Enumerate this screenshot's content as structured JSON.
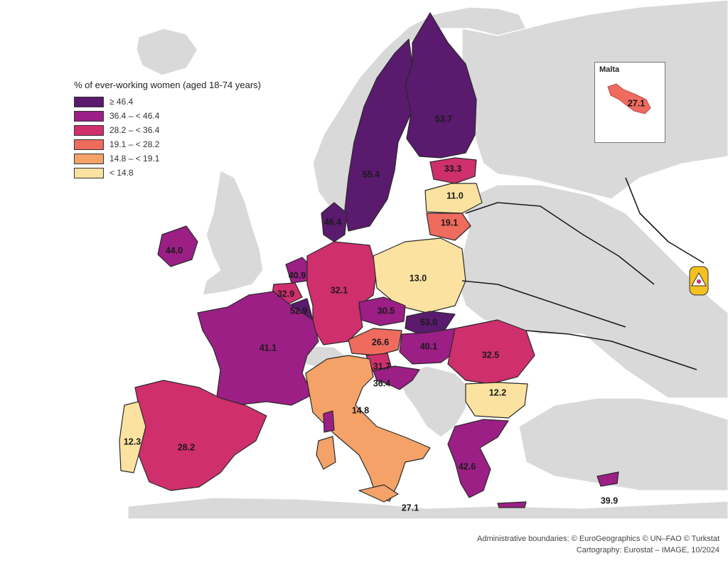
{
  "legend": {
    "title": "% of ever-working women (aged 18-74 years)",
    "classes": [
      {
        "label": "≥ 46.4",
        "color": "#5a1a6e"
      },
      {
        "label": "36.4 – < 46.4",
        "color": "#9b1f85"
      },
      {
        "label": "28.2 – < 36.4",
        "color": "#cf2f6c"
      },
      {
        "label": "19.1 – < 28.2",
        "color": "#ee6b5e"
      },
      {
        "label": "14.8 – < 19.1",
        "color": "#f4a268"
      },
      {
        "label": "< 14.8",
        "color": "#fbe2a0"
      }
    ]
  },
  "countries": [
    {
      "id": "finland",
      "value": "53.7"
    },
    {
      "id": "sweden",
      "value": "55.4"
    },
    {
      "id": "estonia",
      "value": "33.3"
    },
    {
      "id": "latvia",
      "value": "11.0"
    },
    {
      "id": "lithuania",
      "value": "19.1"
    },
    {
      "id": "denmark",
      "value": "46.4"
    },
    {
      "id": "ireland",
      "value": "44.0"
    },
    {
      "id": "netherlands",
      "value": "40.9"
    },
    {
      "id": "belgium",
      "value": "32.9"
    },
    {
      "id": "luxembourg",
      "value": "52.9"
    },
    {
      "id": "germany",
      "value": "32.1"
    },
    {
      "id": "poland",
      "value": "13.0"
    },
    {
      "id": "czechia",
      "value": "30.5"
    },
    {
      "id": "slovakia",
      "value": "53.0"
    },
    {
      "id": "austria",
      "value": "26.6"
    },
    {
      "id": "hungary",
      "value": "40.1"
    },
    {
      "id": "romania",
      "value": "32.5"
    },
    {
      "id": "slovenia",
      "value": "31.7"
    },
    {
      "id": "croatia",
      "value": "36.4"
    },
    {
      "id": "bulgaria",
      "value": "12.2"
    },
    {
      "id": "france",
      "value": "41.1"
    },
    {
      "id": "spain",
      "value": "28.2"
    },
    {
      "id": "portugal",
      "value": "12.3"
    },
    {
      "id": "italy",
      "value": "14.8"
    },
    {
      "id": "malta-main",
      "value": "27.1"
    },
    {
      "id": "greece",
      "value": "42.6"
    },
    {
      "id": "cyprus",
      "value": "39.9"
    },
    {
      "id": "malta",
      "value": "27.1"
    }
  ],
  "inset": {
    "title": "Malta"
  },
  "credits": {
    "line1": "Administrative boundaries: © EuroGeographics © UN–FAO © Turkstat",
    "line2": "Cartography: Eurostat – IMAGE, 10/2024"
  }
}
